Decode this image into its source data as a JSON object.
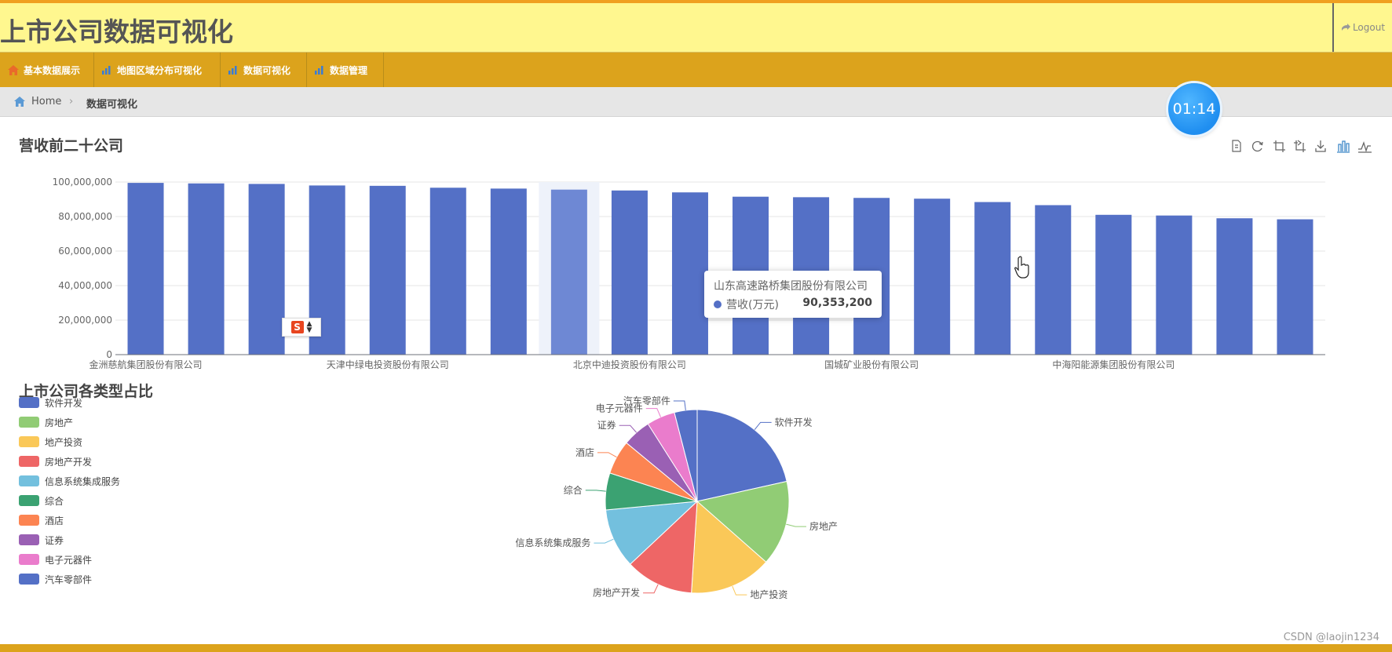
{
  "header": {
    "title": "上市公司数据可视化",
    "logout_label": "Logout"
  },
  "nav": {
    "items": [
      {
        "label": "基本数据展示",
        "icon": "home-icon"
      },
      {
        "label": "地图区域分布可视化",
        "icon": "bar-chart-icon"
      },
      {
        "label": "数据可视化",
        "icon": "bar-chart-icon"
      },
      {
        "label": "数据管理",
        "icon": "bar-chart-icon"
      }
    ]
  },
  "breadcrumb": {
    "home": "Home",
    "current": "数据可视化"
  },
  "timer": {
    "value": "01:14"
  },
  "bar_section": {
    "title": "营收前二十公司"
  },
  "pie_section": {
    "title": "上市公司各类型占比"
  },
  "tooltip": {
    "name": "山东高速路桥集团股份有限公司",
    "series": "营收(万元)",
    "value": "90,353,200"
  },
  "watermark": "CSDN @laojin1234",
  "colors": {
    "bar": "#5470c6",
    "header_bg": "#fff78f",
    "nav_bg": "#dca31c",
    "palette": [
      "#5470c6",
      "#91cc75",
      "#fac858",
      "#ee6666",
      "#73c0de",
      "#3ba272",
      "#fc8452",
      "#9a60b4",
      "#ea7ccc",
      "#5470c6"
    ]
  },
  "chart_data": [
    {
      "type": "bar",
      "title": "营收前二十公司",
      "series": [
        {
          "name": "营收(万元)",
          "values": [
            99500000,
            99200000,
            98900000,
            98000000,
            97800000,
            96700000,
            96200000,
            95600000,
            95100000,
            94000000,
            91500000,
            91200000,
            90800000,
            90353200,
            88400000,
            86600000,
            81000000,
            80600000,
            79000000,
            78400000
          ]
        }
      ],
      "x_tick_labels": [
        "金洲慈航集团股份有限公司",
        "天津中绿电投资股份有限公司",
        "北京中迪投资股份有限公司",
        "国城矿业股份有限公司",
        "中海阳能源集团股份有限公司"
      ],
      "y_tick_labels": [
        "0",
        "20,000,000",
        "40,000,000",
        "60,000,000",
        "80,000,000",
        "100,000,000"
      ],
      "ylim": [
        0,
        100000000
      ],
      "grid": true,
      "highlighted_index": 7
    },
    {
      "type": "pie",
      "title": "上市公司各类型占比",
      "legend_position": "left",
      "slices": [
        {
          "name": "软件开发",
          "value": 21.5
        },
        {
          "name": "房地产",
          "value": 15.0
        },
        {
          "name": "地产投资",
          "value": 14.5
        },
        {
          "name": "房地产开发",
          "value": 12.0
        },
        {
          "name": "信息系统集成服务",
          "value": 10.5
        },
        {
          "name": "综合",
          "value": 6.5
        },
        {
          "name": "酒店",
          "value": 6.0
        },
        {
          "name": "证券",
          "value": 5.0
        },
        {
          "name": "电子元器件",
          "value": 5.0
        },
        {
          "name": "汽车零部件",
          "value": 4.0
        }
      ]
    }
  ]
}
